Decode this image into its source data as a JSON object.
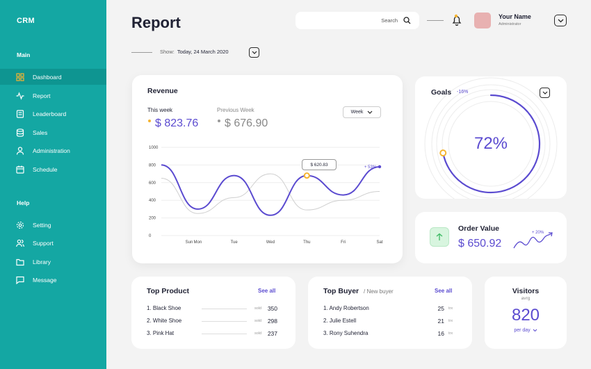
{
  "sidebar": {
    "brand": "CRM",
    "main_title": "Main",
    "main_items": [
      {
        "label": "Dashboard"
      },
      {
        "label": "Report"
      },
      {
        "label": "Leaderboard"
      },
      {
        "label": "Sales"
      },
      {
        "label": "Administration"
      },
      {
        "label": "Schedule"
      }
    ],
    "help_title": "Help",
    "help_items": [
      {
        "label": "Setting"
      },
      {
        "label": "Support"
      },
      {
        "label": "Library"
      },
      {
        "label": "Message"
      }
    ]
  },
  "header": {
    "title": "Report",
    "search_placeholder": "Search",
    "user_name": "Your Name",
    "user_role": "Administrator",
    "show_label": "Show:",
    "show_value": "Today, 24 March 2020"
  },
  "revenue": {
    "title": "Revenue",
    "this_week_label": "This week",
    "this_week_value": "$ 823.76",
    "prev_week_label": "Previous Week",
    "prev_week_value": "$ 676.90",
    "period": "Week",
    "tooltip": "$ 620.83",
    "end_label": "+ 53%",
    "colors": {
      "current": "#5b4bd0",
      "previous": "#cfcfcf",
      "dot": "#f5b431"
    }
  },
  "chart_data": {
    "type": "line",
    "x": [
      "Sun",
      "Mon",
      "Tue",
      "Wed",
      "Thu",
      "Fri",
      "Sat"
    ],
    "y_ticks": [
      "1000",
      "800",
      "600",
      "400",
      "200",
      "0"
    ],
    "ylim": [
      0,
      1000
    ],
    "series": [
      {
        "name": "This week",
        "values": [
          800,
          300,
          680,
          230,
          680,
          460,
          780
        ]
      },
      {
        "name": "Previous Week",
        "values": [
          650,
          250,
          430,
          700,
          290,
          400,
          500
        ]
      }
    ]
  },
  "goals": {
    "title": "Goals",
    "delta": "-16%",
    "percent_text": "72%",
    "percent": 72
  },
  "order_value": {
    "title": "Order Value",
    "value": "$ 650.92",
    "delta": "+ 20%"
  },
  "top_product": {
    "title": "Top Product",
    "see_all": "See all",
    "rows": [
      {
        "name": "1. Black Shoe",
        "unit": "sold",
        "qty": "350"
      },
      {
        "name": "2. White Shoe",
        "unit": "sold",
        "qty": "298"
      },
      {
        "name": "3. Pink Hat",
        "unit": "sold",
        "qty": "237"
      }
    ]
  },
  "top_buyer": {
    "title": "Top Buyer",
    "subtitle": "/ New buyer",
    "see_all": "See all",
    "rows": [
      {
        "name": "1. Andy Robertson",
        "qty": "25",
        "unit": "trx"
      },
      {
        "name": "2. Julie Estell",
        "qty": "21",
        "unit": "trx"
      },
      {
        "name": "3. Rony Suhendra",
        "qty": "16",
        "unit": "trx"
      }
    ]
  },
  "visitors": {
    "title": "Visitors",
    "sub": "avrg",
    "value": "820",
    "period": "per day"
  }
}
